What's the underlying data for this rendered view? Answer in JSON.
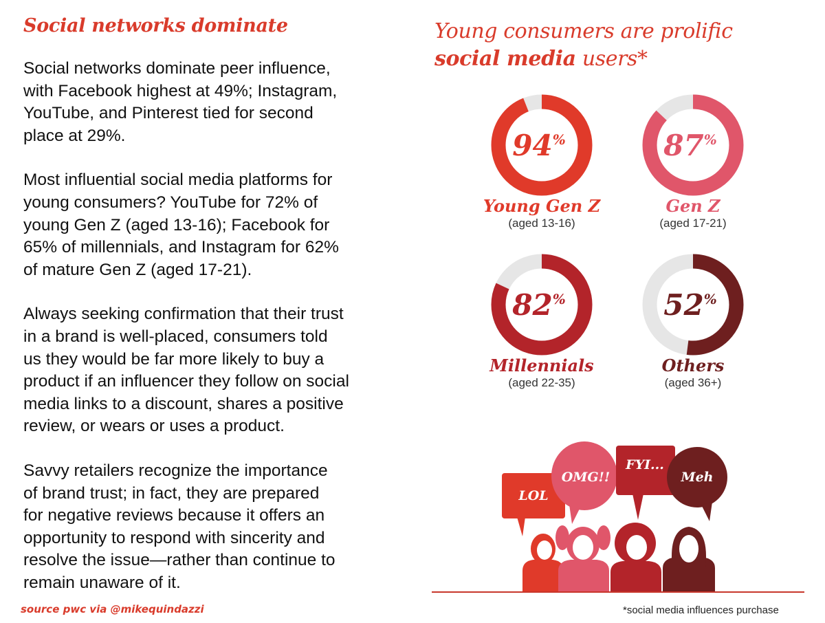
{
  "left": {
    "heading": "Social networks dominate",
    "paragraphs": [
      "Social networks dominate peer influence,\nwith Facebook highest at 49%; Instagram,\nYouTube, and Pinterest tied for second\nplace at 29%.",
      "Most influential social media platforms for\nyoung consumers? YouTube for 72% of\nyoung Gen Z (aged 13-16); Facebook for\n65% of millennials, and Instagram for 62%\nof mature Gen Z (aged 17-21).",
      "Always seeking confirmation that their trust\nin a brand is well-placed, consumers told\nus they would be far more likely to buy a\nproduct if an influencer they follow on social\nmedia links to a discount, shares a positive\nreview, or wears or uses a product.",
      "Savvy retailers recognize the importance\nof brand trust; in fact, they are prepared\nfor negative reviews because it offers an\nopportunity to respond with sincerity and\nresolve the issue—rather than continue to\nremain unaware of it."
    ],
    "source": "source pwc via @mikequindazzi"
  },
  "right": {
    "title_line1": "Young consumers are prolific",
    "title_bold": "social media",
    "title_rest": " users*",
    "footnote": "*social media influences purchase"
  },
  "chart_data": {
    "type": "pie",
    "title": "Young consumers are prolific social media users*",
    "unit": "%",
    "series": [
      {
        "name": "Young Gen Z",
        "subtitle": "(aged 13-16)",
        "value": 94,
        "color": "#e03a2a"
      },
      {
        "name": "Gen Z",
        "subtitle": "(aged 17-21)",
        "value": 87,
        "color": "#e0566a"
      },
      {
        "name": "Millennials",
        "subtitle": "(aged 22-35)",
        "value": 82,
        "color": "#b3242a"
      },
      {
        "name": "Others",
        "subtitle": "(aged 36+)",
        "value": 52,
        "color": "#6e1f1f"
      }
    ],
    "track_color": "#e6e6e6"
  },
  "illustration": {
    "bubbles": [
      "LOL",
      "OMG!!",
      "FYI...",
      "Meh"
    ],
    "colors": [
      "#e03a2a",
      "#e0566a",
      "#b3242a",
      "#6e1f1f"
    ]
  }
}
